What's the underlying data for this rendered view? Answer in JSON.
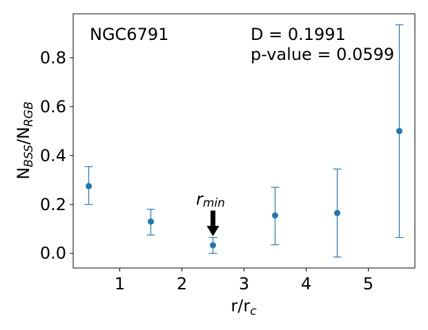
{
  "chart_data": {
    "type": "scatter",
    "title": "",
    "xlabel": "r/r",
    "xlabel_sub": "c",
    "ylabel_main_1": "N",
    "ylabel_sub_1": "BSS",
    "ylabel_main_2": "/N",
    "ylabel_sub_2": "RGB",
    "xlim": [
      0.25,
      5.75
    ],
    "ylim": [
      -0.06,
      0.98
    ],
    "x_ticks": [
      1,
      2,
      3,
      4,
      5
    ],
    "x_tick_labels": [
      "1",
      "2",
      "3",
      "4",
      "5"
    ],
    "y_ticks": [
      0.0,
      0.2,
      0.4,
      0.6,
      0.8
    ],
    "y_tick_labels": [
      "0.0",
      "0.2",
      "0.4",
      "0.6",
      "0.8"
    ],
    "grid": false,
    "series": [
      {
        "color": "#1f77b4",
        "x": [
          0.5,
          1.5,
          2.5,
          3.5,
          4.5,
          5.5
        ],
        "y": [
          0.275,
          0.13,
          0.033,
          0.155,
          0.165,
          0.5
        ],
        "y_err_low": [
          0.2,
          0.075,
          0.0,
          0.035,
          -0.015,
          0.065
        ],
        "y_err_high": [
          0.355,
          0.18,
          0.065,
          0.27,
          0.345,
          0.935
        ]
      }
    ],
    "annotations": {
      "cluster_name": "NGC6791",
      "d_stat": "D = 0.1991",
      "p_value": "p-value = 0.0599",
      "rmin_main": "r",
      "rmin_sub": "min",
      "rmin_x": 2.5,
      "rmin_arrow_top_y": 0.175,
      "rmin_arrow_tip_y": 0.07
    }
  }
}
